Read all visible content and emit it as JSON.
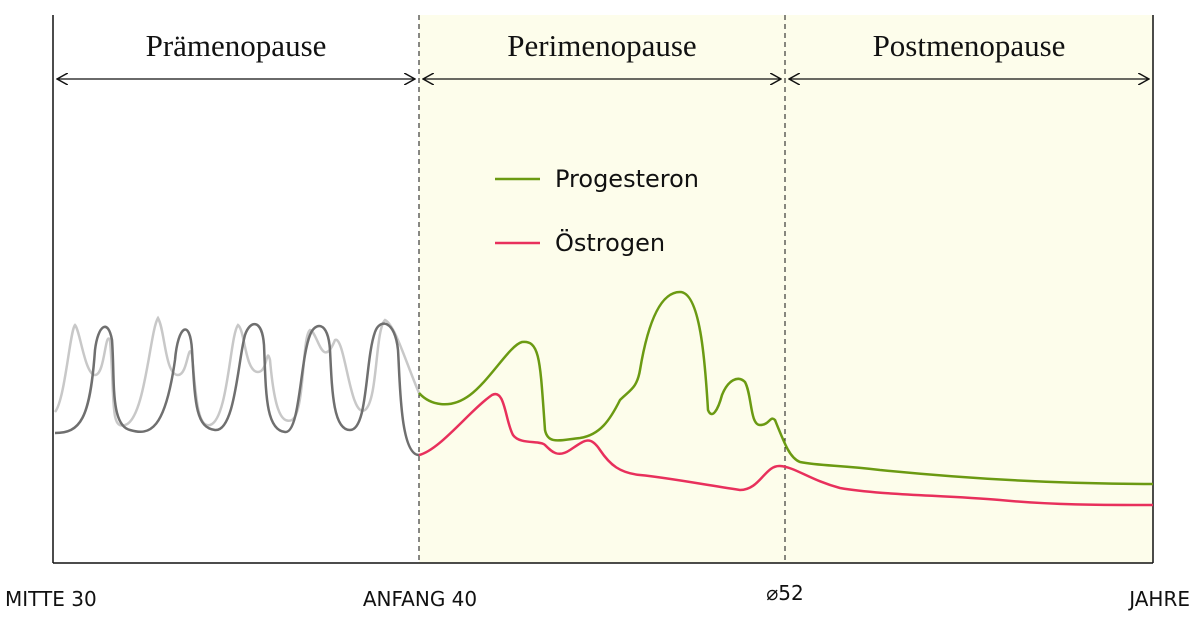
{
  "phases": [
    "Prämenopause",
    "Perimenopause",
    "Postmenopause"
  ],
  "legend": [
    "Progesteron",
    "Östrogen"
  ],
  "axis_labels": [
    "MITTE 30",
    "ANFANG 40",
    "⌀52",
    "JAHRE"
  ]
}
